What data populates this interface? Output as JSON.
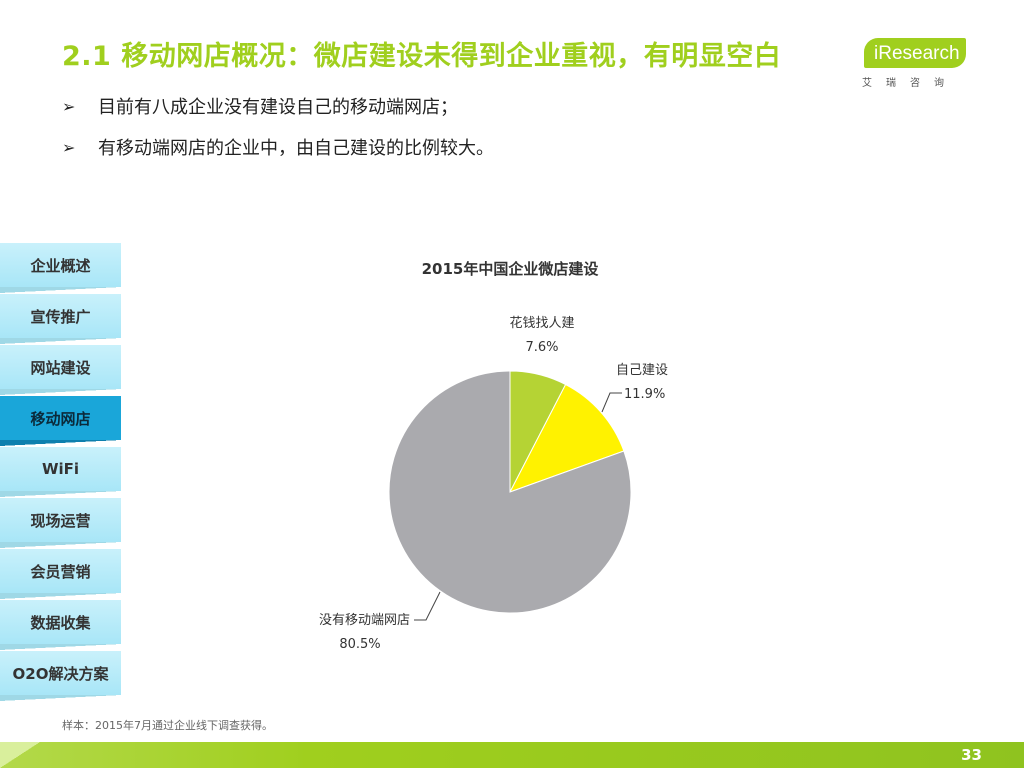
{
  "header": {
    "title": "2.1 移动网店概况：微店建设未得到企业重视，有明显空白"
  },
  "logo": {
    "brand": "iResearch",
    "sub": "艾瑞咨询"
  },
  "bullets": [
    {
      "mark": "➢",
      "text": "目前有八成企业没有建设自己的移动端网店；"
    },
    {
      "mark": "➢",
      "text": "有移动端网店的企业中，由自己建设的比例较大。"
    }
  ],
  "nav": {
    "items": [
      {
        "label": "企业概述"
      },
      {
        "label": "宣传推广"
      },
      {
        "label": "网站建设"
      },
      {
        "label": "移动网店",
        "active": true
      },
      {
        "label": "WiFi"
      },
      {
        "label": "现场运营"
      },
      {
        "label": "会员营销"
      },
      {
        "label": "数据收集"
      },
      {
        "label": "O2O解决方案"
      }
    ]
  },
  "chart_data": {
    "type": "pie",
    "title": "2015年中国企业微店建设",
    "slices": [
      {
        "label": "花钱找人建",
        "value": 7.6,
        "display": "7.6%",
        "color": "#b5d334"
      },
      {
        "label": "自己建设",
        "value": 11.9,
        "display": "11.9%",
        "color": "#fff200"
      },
      {
        "label": "没有移动端网店",
        "value": 80.5,
        "display": "80.5%",
        "color": "#aaaaae"
      }
    ]
  },
  "footnote": "样本：2015年7月通过企业线下调查获得。",
  "page_number": "33"
}
